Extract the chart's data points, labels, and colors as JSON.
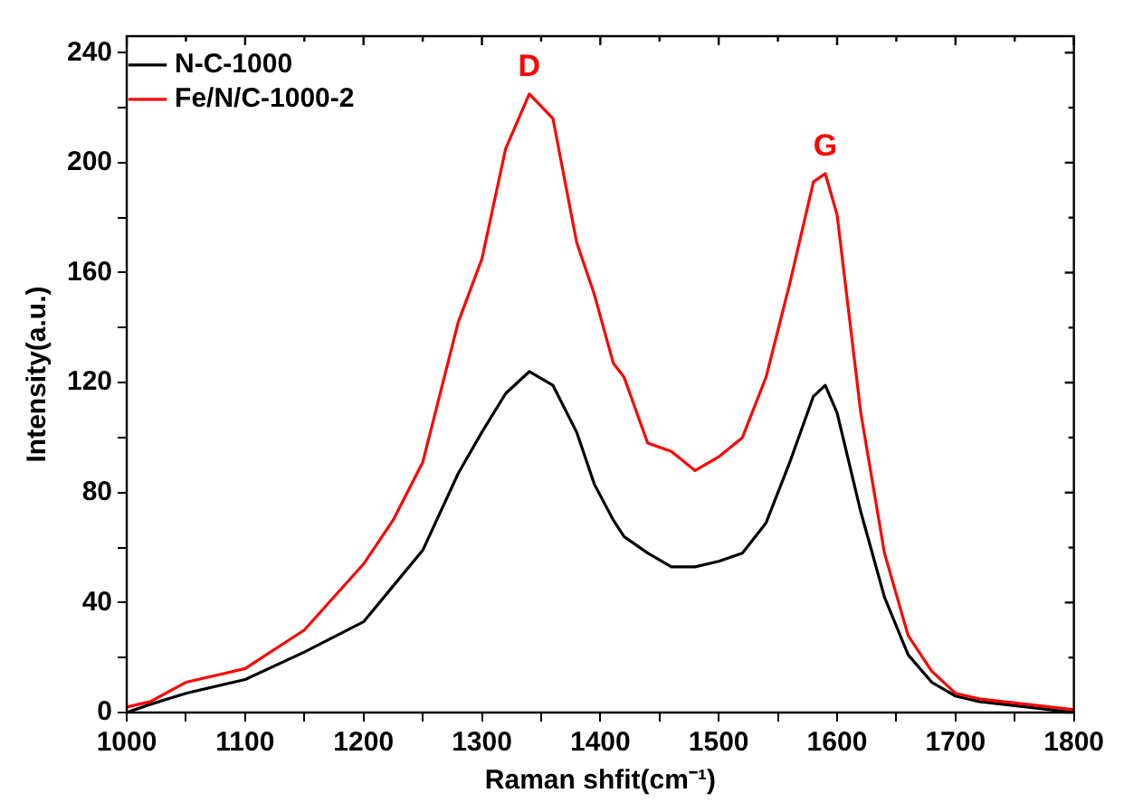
{
  "chart_data": {
    "type": "line",
    "xlabel": "Raman shfit(cm⁻¹)",
    "ylabel": "Intensity(a.u.)",
    "x": [
      1000,
      1020,
      1050,
      1100,
      1150,
      1200,
      1225,
      1250,
      1280,
      1300,
      1320,
      1340,
      1360,
      1380,
      1395,
      1411,
      1420,
      1440,
      1460,
      1480,
      1500,
      1520,
      1540,
      1560,
      1580,
      1590,
      1600,
      1620,
      1640,
      1660,
      1680,
      1700,
      1720,
      1740,
      1760,
      1780,
      1800
    ],
    "series": [
      {
        "name": "N-C-1000",
        "color": "#000000",
        "values": [
          0,
          3,
          7,
          12,
          22,
          33,
          46,
          59,
          87,
          102,
          116,
          124,
          119,
          102,
          83,
          70,
          64,
          58,
          53,
          53,
          55,
          58,
          69,
          91,
          115,
          119,
          109,
          73,
          42,
          21,
          11,
          6,
          4,
          3,
          2,
          1,
          0
        ]
      },
      {
        "name": "Fe/N/C-1000-2",
        "color": "#ff0000",
        "values": [
          2,
          4,
          11,
          16,
          30,
          54,
          70,
          91,
          142,
          165,
          205,
          225,
          216,
          171,
          152,
          127,
          122,
          98,
          95,
          88,
          93,
          100,
          122,
          156,
          193,
          196,
          181,
          109,
          58,
          28,
          15,
          7,
          5,
          4,
          3,
          2,
          1
        ]
      }
    ],
    "xlim": [
      1000,
      1800
    ],
    "xticks": [
      1000,
      {
        "value": 1050,
        "label": null
      },
      1100,
      {
        "value": 1150,
        "label": null
      },
      1200,
      {
        "value": 1250,
        "label": null
      },
      1300,
      {
        "value": 1350,
        "label": null
      },
      1400,
      {
        "value": 1450,
        "label": null
      },
      1500,
      {
        "value": 1550,
        "label": null
      },
      1600,
      {
        "value": 1650,
        "label": null
      },
      1700,
      {
        "value": 1750,
        "label": null
      },
      1800
    ],
    "ylim": [
      0,
      246
    ],
    "yticks": [
      0,
      {
        "value": 20,
        "label": null
      },
      40,
      {
        "value": 60,
        "label": null
      },
      80,
      {
        "value": 100,
        "label": null
      },
      120,
      {
        "value": 140,
        "label": null
      },
      160,
      {
        "value": 180,
        "label": null
      },
      200,
      {
        "value": 220,
        "label": null
      },
      240
    ],
    "annotations": [
      {
        "text": "D",
        "x": 1340,
        "y": 225
      },
      {
        "text": "G",
        "x": 1590,
        "y": 196
      }
    ],
    "legend": "top left",
    "grid": false,
    "marker": "none",
    "line_style": "solid"
  }
}
